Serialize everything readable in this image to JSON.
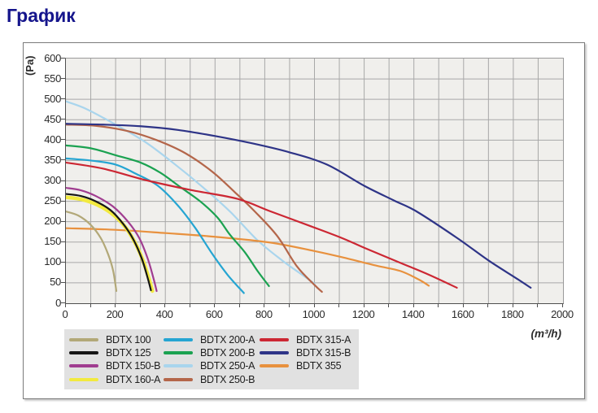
{
  "page": {
    "title": "График"
  },
  "chart_data": {
    "type": "line",
    "title": "График",
    "xlabel": "(m³/h)",
    "ylabel": "(Pa)",
    "xlim": [
      0,
      2000
    ],
    "ylim": [
      0,
      600
    ],
    "x_ticks": [
      0,
      200,
      400,
      600,
      800,
      1000,
      1200,
      1400,
      1600,
      1800,
      2000
    ],
    "x_minor_step": 100,
    "y_ticks": [
      0,
      50,
      100,
      150,
      200,
      250,
      300,
      350,
      400,
      450,
      500,
      550,
      600
    ],
    "grid": true,
    "legend_position": "bottom-left",
    "series": [
      {
        "name": "BDTX 100",
        "color": "#b2a878",
        "points": [
          [
            0,
            225
          ],
          [
            50,
            215
          ],
          [
            100,
            192
          ],
          [
            140,
            160
          ],
          [
            170,
            120
          ],
          [
            190,
            80
          ],
          [
            203,
            30
          ]
        ]
      },
      {
        "name": "BDTX 125",
        "color": "#151515",
        "points": [
          [
            0,
            268
          ],
          [
            60,
            263
          ],
          [
            120,
            250
          ],
          [
            180,
            228
          ],
          [
            230,
            195
          ],
          [
            270,
            158
          ],
          [
            305,
            110
          ],
          [
            330,
            60
          ],
          [
            342,
            32
          ]
        ]
      },
      {
        "name": "BDTX 150-B",
        "color": "#a03d90",
        "points": [
          [
            0,
            283
          ],
          [
            60,
            277
          ],
          [
            120,
            263
          ],
          [
            190,
            237
          ],
          [
            250,
            200
          ],
          [
            295,
            160
          ],
          [
            330,
            108
          ],
          [
            355,
            55
          ],
          [
            365,
            30
          ]
        ]
      },
      {
        "name": "BDTX 160-A",
        "color": "#f2ea3f",
        "points": [
          [
            0,
            260
          ],
          [
            60,
            255
          ],
          [
            120,
            243
          ],
          [
            180,
            222
          ],
          [
            235,
            190
          ],
          [
            275,
            152
          ],
          [
            310,
            105
          ],
          [
            335,
            58
          ],
          [
            348,
            30
          ]
        ]
      },
      {
        "name": "BDTX 200-A",
        "color": "#25a5d2",
        "points": [
          [
            0,
            355
          ],
          [
            100,
            350
          ],
          [
            200,
            340
          ],
          [
            280,
            318
          ],
          [
            370,
            288
          ],
          [
            450,
            240
          ],
          [
            520,
            185
          ],
          [
            590,
            120
          ],
          [
            650,
            70
          ],
          [
            716,
            25
          ]
        ]
      },
      {
        "name": "BDTX 200-B",
        "color": "#1ba251",
        "points": [
          [
            0,
            387
          ],
          [
            100,
            380
          ],
          [
            200,
            363
          ],
          [
            300,
            345
          ],
          [
            380,
            320
          ],
          [
            460,
            285
          ],
          [
            540,
            250
          ],
          [
            610,
            210
          ],
          [
            660,
            168
          ],
          [
            720,
            125
          ],
          [
            770,
            80
          ],
          [
            817,
            42
          ]
        ]
      },
      {
        "name": "BDTX 250-A",
        "color": "#a9d5ed",
        "points": [
          [
            0,
            495
          ],
          [
            80,
            477
          ],
          [
            200,
            438
          ],
          [
            320,
            395
          ],
          [
            440,
            340
          ],
          [
            550,
            285
          ],
          [
            660,
            225
          ],
          [
            770,
            155
          ],
          [
            870,
            105
          ],
          [
            950,
            70
          ],
          [
            1000,
            48
          ]
        ]
      },
      {
        "name": "BDTX 250-B",
        "color": "#b4664a",
        "points": [
          [
            0,
            438
          ],
          [
            120,
            435
          ],
          [
            250,
            422
          ],
          [
            365,
            400
          ],
          [
            480,
            368
          ],
          [
            590,
            322
          ],
          [
            680,
            272
          ],
          [
            760,
            225
          ],
          [
            850,
            165
          ],
          [
            930,
            90
          ],
          [
            1000,
            45
          ],
          [
            1030,
            28
          ]
        ]
      },
      {
        "name": "BDTX 315-A",
        "color": "#cc2733",
        "points": [
          [
            0,
            345
          ],
          [
            150,
            330
          ],
          [
            320,
            302
          ],
          [
            500,
            278
          ],
          [
            690,
            256
          ],
          [
            820,
            226
          ],
          [
            980,
            190
          ],
          [
            1110,
            160
          ],
          [
            1204,
            135
          ],
          [
            1346,
            99
          ],
          [
            1460,
            70
          ],
          [
            1573,
            38
          ]
        ]
      },
      {
        "name": "BDTX 315-B",
        "color": "#2e3487",
        "points": [
          [
            0,
            440
          ],
          [
            150,
            438
          ],
          [
            300,
            434
          ],
          [
            450,
            425
          ],
          [
            600,
            410
          ],
          [
            750,
            392
          ],
          [
            900,
            370
          ],
          [
            1050,
            340
          ],
          [
            1200,
            288
          ],
          [
            1320,
            252
          ],
          [
            1411,
            225
          ],
          [
            1574,
            160
          ],
          [
            1700,
            105
          ],
          [
            1810,
            62
          ],
          [
            1870,
            38
          ]
        ]
      },
      {
        "name": "BDTX 355",
        "color": "#e8913e",
        "points": [
          [
            0,
            184
          ],
          [
            200,
            180
          ],
          [
            400,
            172
          ],
          [
            600,
            163
          ],
          [
            820,
            149
          ],
          [
            1000,
            128
          ],
          [
            1117,
            112
          ],
          [
            1250,
            92
          ],
          [
            1346,
            79
          ],
          [
            1420,
            58
          ],
          [
            1460,
            43
          ]
        ]
      }
    ]
  }
}
